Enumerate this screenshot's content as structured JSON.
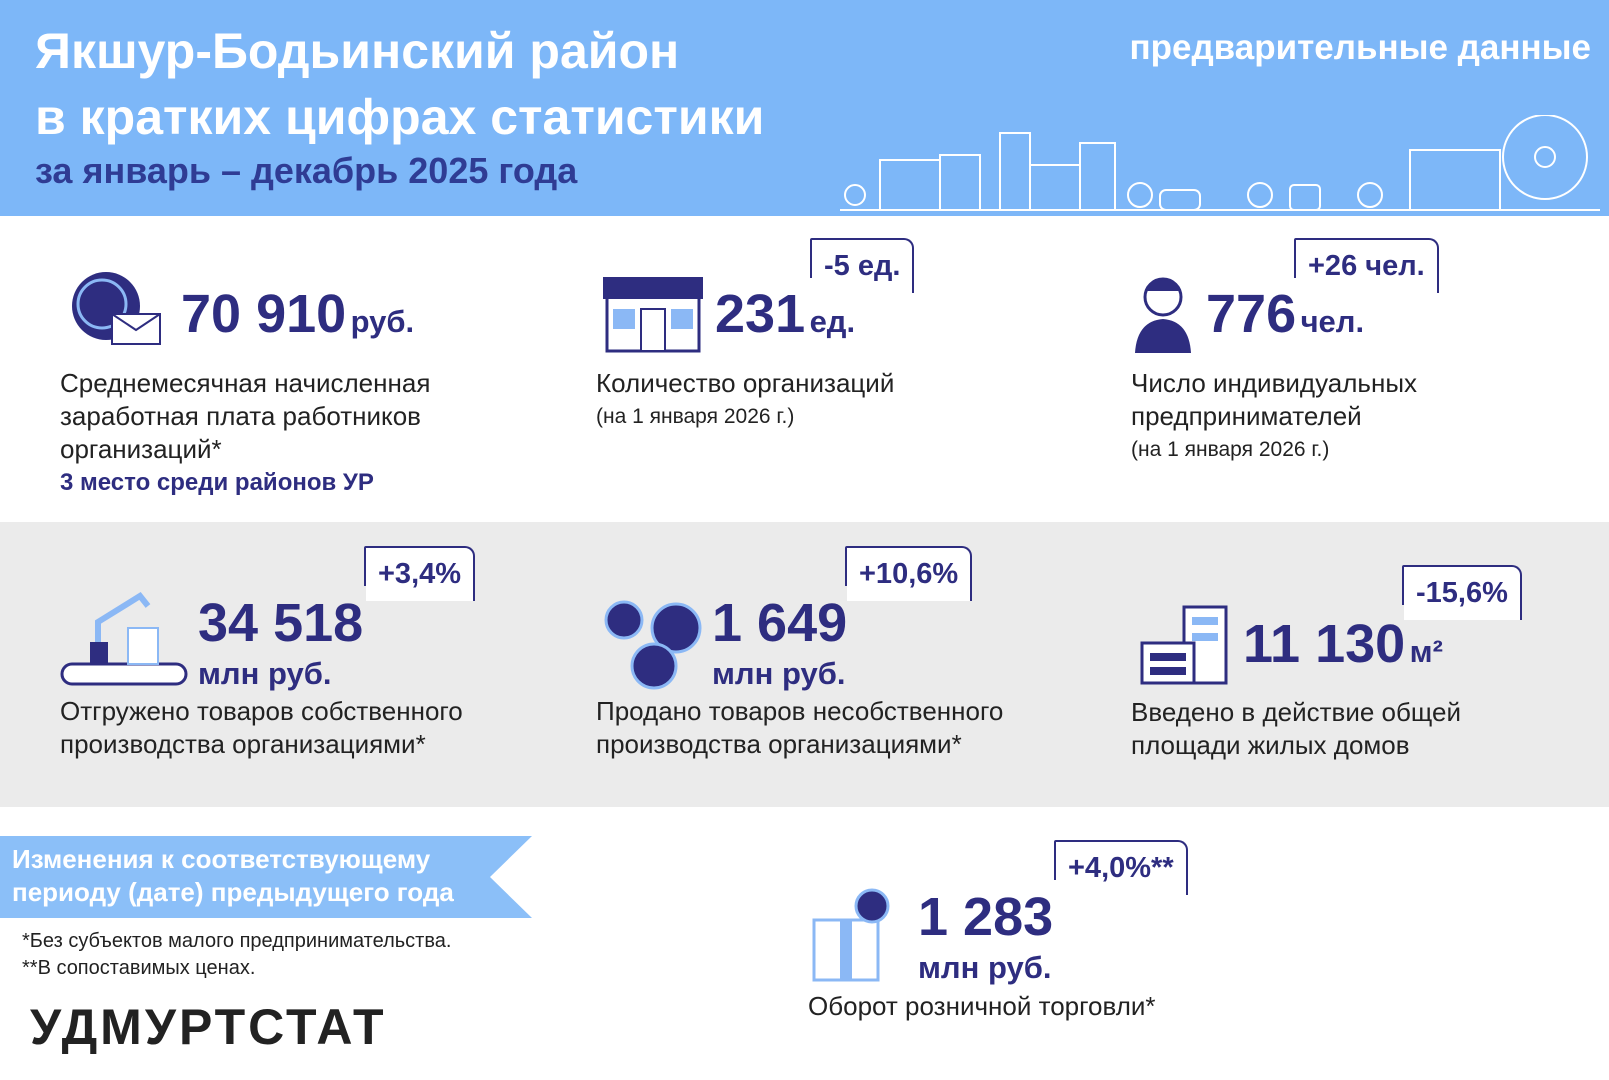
{
  "header": {
    "title_lines": [
      "Якшур-Бодьинский район",
      "в кратких цифрах статистики"
    ],
    "subtitle": "за январь – декабрь 2025 года",
    "note": "предварительные данные"
  },
  "indicators": [
    {
      "value": "70 910",
      "unit": "руб.",
      "description": [
        "Среднемесячная начисленная",
        "заработная плата работников",
        "организаций*"
      ],
      "rank": "3 место среди районов УР"
    },
    {
      "value": "231",
      "unit": "ед.",
      "change": "-5 ед.",
      "description": [
        "Количество организаций"
      ],
      "date_note": "(на 1 января 2026 г.)"
    },
    {
      "value": "776",
      "unit": "чел.",
      "change": "+26 чел.",
      "description": [
        "Число индивидуальных",
        "предпринимателей"
      ],
      "date_note": "(на 1 января 2026 г.)"
    },
    {
      "value": "34 518",
      "unit": "млн руб.",
      "change": "+3,4%",
      "description": [
        "Отгружено товаров собственного",
        "производства организациями*"
      ]
    },
    {
      "value": "1 649",
      "unit": "млн руб.",
      "change": "+10,6%",
      "description": [
        "Продано товаров несобственного",
        "производства организациями*"
      ]
    },
    {
      "value": "11 130",
      "unit": "м²",
      "change": "-15,6%",
      "description": [
        "Введено в действие общей",
        "площади жилых домов"
      ]
    },
    {
      "value": "1 283",
      "unit": "млн руб.",
      "change": "+4,0%**",
      "description": [
        "Оборот розничной торговли*"
      ]
    }
  ],
  "legend": {
    "change_note": [
      "Изменения к соответствующему",
      "периоду (дате) предыдущего года"
    ],
    "footnotes": [
      "*Без субъектов малого предпринимательства.",
      "**В сопоставимых ценах."
    ],
    "logo": "УДМУРТСТАТ"
  }
}
